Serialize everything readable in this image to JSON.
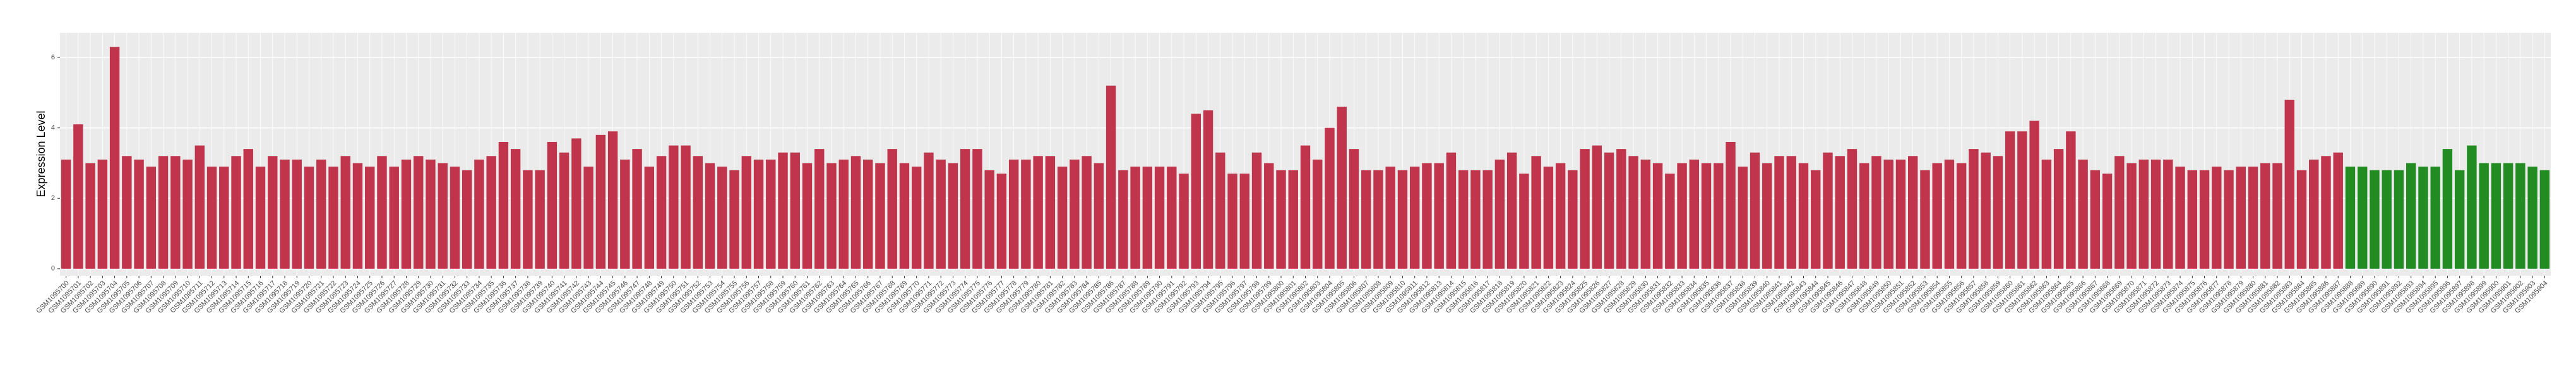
{
  "chart_data": {
    "type": "bar",
    "y_label": "Expression Level",
    "categories": [
      "GSM1095700",
      "GSM1095701",
      "GSM1095702",
      "GSM1095703",
      "GSM1095704",
      "GSM1095705",
      "GSM1095706",
      "GSM1095707",
      "GSM1095708",
      "GSM1095709",
      "GSM1095710",
      "GSM1095711",
      "GSM1095712",
      "GSM1095713",
      "GSM1095714",
      "GSM1095715",
      "GSM1095716",
      "GSM1095717",
      "GSM1095718",
      "GSM1095719",
      "GSM1095720",
      "GSM1095721",
      "GSM1095722",
      "GSM1095723",
      "GSM1095724",
      "GSM1095725",
      "GSM1095726",
      "GSM1095727",
      "GSM1095728",
      "GSM1095729",
      "GSM1095730",
      "GSM1095731",
      "GSM1095732",
      "GSM1095733",
      "GSM1095734",
      "GSM1095735",
      "GSM1095736",
      "GSM1095737",
      "GSM1095738",
      "GSM1095739",
      "GSM1095740",
      "GSM1095741",
      "GSM1095742",
      "GSM1095743",
      "GSM1095744",
      "GSM1095745",
      "GSM1095746",
      "GSM1095747",
      "GSM1095748",
      "GSM1095749",
      "GSM1095750",
      "GSM1095751",
      "GSM1095752",
      "GSM1095753",
      "GSM1095754",
      "GSM1095755",
      "GSM1095756",
      "GSM1095757",
      "GSM1095758",
      "GSM1095759",
      "GSM1095760",
      "GSM1095761",
      "GSM1095762",
      "GSM1095763",
      "GSM1095764",
      "GSM1095765",
      "GSM1095766",
      "GSM1095767",
      "GSM1095768",
      "GSM1095769",
      "GSM1095770",
      "GSM1095771",
      "GSM1095772",
      "GSM1095773",
      "GSM1095774",
      "GSM1095775",
      "GSM1095776",
      "GSM1095777",
      "GSM1095778",
      "GSM1095779",
      "GSM1095780",
      "GSM1095781",
      "GSM1095782",
      "GSM1095783",
      "GSM1095784",
      "GSM1095785",
      "GSM1095786",
      "GSM1095787",
      "GSM1095788",
      "GSM1095789",
      "GSM1095790",
      "GSM1095791",
      "GSM1095792",
      "GSM1095793",
      "GSM1095794",
      "GSM1095795",
      "GSM1095796",
      "GSM1095797",
      "GSM1095798",
      "GSM1095799",
      "GSM1095800",
      "GSM1095801",
      "GSM1095802",
      "GSM1095803",
      "GSM1095804",
      "GSM1095805",
      "GSM1095806",
      "GSM1095807",
      "GSM1095808",
      "GSM1095809",
      "GSM1095810",
      "GSM1095811",
      "GSM1095812",
      "GSM1095813",
      "GSM1095814",
      "GSM1095815",
      "GSM1095816",
      "GSM1095817",
      "GSM1095818",
      "GSM1095819",
      "GSM1095820",
      "GSM1095821",
      "GSM1095822",
      "GSM1095823",
      "GSM1095824",
      "GSM1095825",
      "GSM1095826",
      "GSM1095827",
      "GSM1095828",
      "GSM1095829",
      "GSM1095830",
      "GSM1095831",
      "GSM1095832",
      "GSM1095833",
      "GSM1095834",
      "GSM1095835",
      "GSM1095836",
      "GSM1095837",
      "GSM1095838",
      "GSM1095839",
      "GSM1095840",
      "GSM1095841",
      "GSM1095842",
      "GSM1095843",
      "GSM1095844",
      "GSM1095845",
      "GSM1095846",
      "GSM1095847",
      "GSM1095848",
      "GSM1095849",
      "GSM1095850",
      "GSM1095851",
      "GSM1095852",
      "GSM1095853",
      "GSM1095854",
      "GSM1095855",
      "GSM1095856",
      "GSM1095857",
      "GSM1095858",
      "GSM1095859",
      "GSM1095860",
      "GSM1095861",
      "GSM1095862",
      "GSM1095863",
      "GSM1095864",
      "GSM1095865",
      "GSM1095866",
      "GSM1095867",
      "GSM1095868",
      "GSM1095869",
      "GSM1095870",
      "GSM1095871",
      "GSM1095872",
      "GSM1095873",
      "GSM1095874",
      "GSM1095875",
      "GSM1095876",
      "GSM1095877",
      "GSM1095878",
      "GSM1095879",
      "GSM1095880",
      "GSM1095881",
      "GSM1095882",
      "GSM1095883",
      "GSM1095884",
      "GSM1095885",
      "GSM1095886",
      "GSM1095887",
      "GSM1095888",
      "GSM1095889",
      "GSM1095890",
      "GSM1095891",
      "GSM1095892",
      "GSM1095893",
      "GSM1095894",
      "GSM1095895",
      "GSM1095896",
      "GSM1095897",
      "GSM1095898",
      "GSM1095899",
      "GSM1095900",
      "GSM1095901",
      "GSM1095902",
      "GSM1095903",
      "GSM1095904"
    ],
    "values": [
      3.1,
      4.1,
      3.0,
      3.1,
      6.3,
      3.2,
      3.1,
      2.9,
      3.2,
      3.2,
      3.1,
      3.5,
      2.9,
      2.9,
      3.2,
      3.4,
      2.9,
      3.2,
      3.1,
      3.1,
      2.9,
      3.1,
      2.9,
      3.2,
      3.0,
      2.9,
      3.2,
      2.9,
      3.1,
      3.2,
      3.1,
      3.0,
      2.9,
      2.8,
      3.1,
      3.2,
      3.6,
      3.4,
      2.8,
      2.8,
      3.6,
      3.3,
      3.7,
      2.9,
      3.8,
      3.9,
      3.1,
      3.4,
      2.9,
      3.2,
      3.5,
      3.5,
      3.2,
      3.0,
      2.9,
      2.8,
      3.2,
      3.1,
      3.1,
      3.3,
      3.3,
      3.0,
      3.4,
      3.0,
      3.1,
      3.2,
      3.1,
      3.0,
      3.4,
      3.0,
      2.9,
      3.3,
      3.1,
      3.0,
      3.4,
      3.4,
      2.8,
      2.7,
      3.1,
      3.1,
      3.2,
      3.2,
      2.9,
      3.1,
      3.2,
      3.0,
      5.2,
      2.8,
      2.9,
      2.9,
      2.9,
      2.9,
      2.7,
      4.4,
      4.5,
      3.3,
      2.7,
      2.7,
      3.3,
      3.0,
      2.8,
      2.8,
      3.5,
      3.1,
      4.0,
      4.6,
      3.4,
      2.8,
      2.8,
      2.9,
      2.8,
      2.9,
      3.0,
      3.0,
      3.3,
      2.8,
      2.8,
      2.8,
      3.1,
      3.3,
      2.7,
      3.2,
      2.9,
      3.0,
      2.8,
      3.4,
      3.5,
      3.3,
      3.4,
      3.2,
      3.1,
      3.0,
      2.7,
      3.0,
      3.1,
      3.0,
      3.0,
      3.6,
      2.9,
      3.3,
      3.0,
      3.2,
      3.2,
      3.0,
      2.8,
      3.3,
      3.2,
      3.4,
      3.0,
      3.2,
      3.1,
      3.1,
      3.2,
      2.8,
      3.0,
      3.1,
      3.0,
      3.4,
      3.3,
      3.2,
      3.9,
      3.9,
      4.2,
      3.1,
      3.4,
      3.9,
      3.1,
      2.8,
      2.7,
      3.2,
      3.0,
      3.1,
      3.1,
      3.1,
      2.9,
      2.8,
      2.8,
      2.9,
      2.8,
      2.9,
      2.9,
      3.0,
      3.0,
      4.8,
      2.8,
      3.1,
      3.2,
      3.3,
      2.9,
      2.9,
      2.8,
      2.8,
      2.8,
      3.0,
      2.9,
      2.9,
      3.4,
      2.8,
      3.5,
      3.0,
      3.0,
      3.0,
      3.0,
      2.9,
      2.8
    ],
    "colors": [
      "#c0344c",
      "#c0344c",
      "#c0344c",
      "#c0344c",
      "#c0344c",
      "#c0344c",
      "#c0344c",
      "#c0344c",
      "#c0344c",
      "#c0344c",
      "#c0344c",
      "#c0344c",
      "#c0344c",
      "#c0344c",
      "#c0344c",
      "#c0344c",
      "#c0344c",
      "#c0344c",
      "#c0344c",
      "#c0344c",
      "#c0344c",
      "#c0344c",
      "#c0344c",
      "#c0344c",
      "#c0344c",
      "#c0344c",
      "#c0344c",
      "#c0344c",
      "#c0344c",
      "#c0344c",
      "#c0344c",
      "#c0344c",
      "#c0344c",
      "#c0344c",
      "#c0344c",
      "#c0344c",
      "#c0344c",
      "#c0344c",
      "#c0344c",
      "#c0344c",
      "#c0344c",
      "#c0344c",
      "#c0344c",
      "#c0344c",
      "#c0344c",
      "#c0344c",
      "#c0344c",
      "#c0344c",
      "#c0344c",
      "#c0344c",
      "#c0344c",
      "#c0344c",
      "#c0344c",
      "#c0344c",
      "#c0344c",
      "#c0344c",
      "#c0344c",
      "#c0344c",
      "#c0344c",
      "#c0344c",
      "#c0344c",
      "#c0344c",
      "#c0344c",
      "#c0344c",
      "#c0344c",
      "#c0344c",
      "#c0344c",
      "#c0344c",
      "#c0344c",
      "#c0344c",
      "#c0344c",
      "#c0344c",
      "#c0344c",
      "#c0344c",
      "#c0344c",
      "#c0344c",
      "#c0344c",
      "#c0344c",
      "#c0344c",
      "#c0344c",
      "#c0344c",
      "#c0344c",
      "#c0344c",
      "#c0344c",
      "#c0344c",
      "#c0344c",
      "#c0344c",
      "#c0344c",
      "#c0344c",
      "#c0344c",
      "#c0344c",
      "#c0344c",
      "#c0344c",
      "#c0344c",
      "#c0344c",
      "#c0344c",
      "#c0344c",
      "#c0344c",
      "#c0344c",
      "#c0344c",
      "#c0344c",
      "#c0344c",
      "#c0344c",
      "#c0344c",
      "#c0344c",
      "#c0344c",
      "#c0344c",
      "#c0344c",
      "#c0344c",
      "#c0344c",
      "#c0344c",
      "#c0344c",
      "#c0344c",
      "#c0344c",
      "#c0344c",
      "#c0344c",
      "#c0344c",
      "#c0344c",
      "#c0344c",
      "#c0344c",
      "#c0344c",
      "#c0344c",
      "#c0344c",
      "#c0344c",
      "#c0344c",
      "#c0344c",
      "#c0344c",
      "#c0344c",
      "#c0344c",
      "#c0344c",
      "#c0344c",
      "#c0344c",
      "#c0344c",
      "#c0344c",
      "#c0344c",
      "#c0344c",
      "#c0344c",
      "#c0344c",
      "#c0344c",
      "#c0344c",
      "#c0344c",
      "#c0344c",
      "#c0344c",
      "#c0344c",
      "#c0344c",
      "#c0344c",
      "#c0344c",
      "#c0344c",
      "#c0344c",
      "#c0344c",
      "#c0344c",
      "#c0344c",
      "#c0344c",
      "#c0344c",
      "#c0344c",
      "#c0344c",
      "#c0344c",
      "#c0344c",
      "#c0344c",
      "#c0344c",
      "#c0344c",
      "#c0344c",
      "#c0344c",
      "#c0344c",
      "#c0344c",
      "#c0344c",
      "#c0344c",
      "#c0344c",
      "#c0344c",
      "#c0344c",
      "#c0344c",
      "#c0344c",
      "#c0344c",
      "#c0344c",
      "#c0344c",
      "#c0344c",
      "#c0344c",
      "#c0344c",
      "#c0344c",
      "#c0344c",
      "#c0344c",
      "#c0344c",
      "#c0344c",
      "#c0344c",
      "#c0344c",
      "#c0344c",
      "#c0344c",
      "#c0344c",
      "#228b22",
      "#228b22",
      "#228b22",
      "#228b22",
      "#228b22",
      "#228b22",
      "#228b22",
      "#228b22",
      "#228b22",
      "#228b22",
      "#228b22",
      "#228b22",
      "#228b22",
      "#228b22",
      "#228b22",
      "#228b22",
      "#228b22",
      "#228b22",
      "#228b22",
      "#228b22",
      "#228b22"
    ],
    "ylim": [
      -0.2,
      6.7
    ],
    "yticks": [
      0,
      2,
      4,
      6
    ],
    "grid": true
  }
}
